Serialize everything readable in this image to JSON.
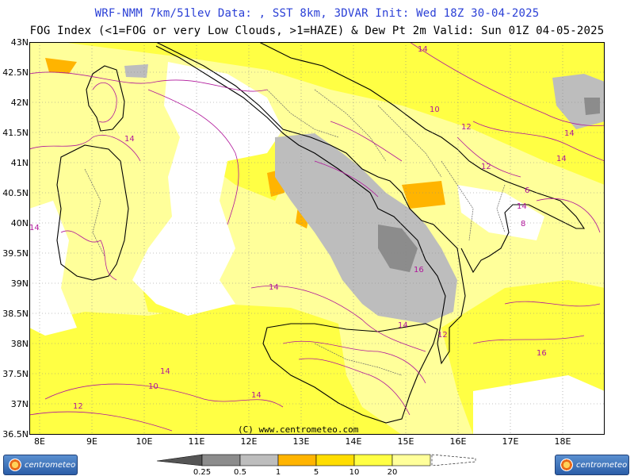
{
  "header": {
    "line1": "WRF-NMM 7km/51lev  Data: , SST 8km, 3DVAR  Init: Wed 18Z 30-04-2025",
    "line2": "FOG Index (<1=FOG or very Low Clouds, >1=HAZE) & Dew Pt 2m  Valid: Sun 01Z 04-05-2025"
  },
  "axes": {
    "lat_labels": [
      "43N",
      "42.5N",
      "42N",
      "41.5N",
      "41N",
      "40.5N",
      "40N",
      "39.5N",
      "39N",
      "38.5N",
      "38N",
      "37.5N",
      "37N",
      "36.5N"
    ],
    "lon_labels": [
      "8E",
      "9E",
      "10E",
      "11E",
      "12E",
      "13E",
      "14E",
      "15E",
      "16E",
      "17E",
      "18E"
    ]
  },
  "copyright": "(C) www.centrometeo.com",
  "logos": {
    "left": "centrometeo",
    "right": "centrometeo"
  },
  "legend": {
    "tick_labels": [
      "0.25",
      "0.5",
      "1",
      "5",
      "10",
      "20"
    ],
    "colors": [
      "#8c8c8c",
      "#bdbdbd",
      "#ffb400",
      "#ffdd00",
      "#ffff44",
      "#ffff9a"
    ]
  },
  "contour_labels": [
    {
      "text": "14"
    },
    {
      "text": "14"
    },
    {
      "text": "12"
    },
    {
      "text": "14"
    },
    {
      "text": "10"
    },
    {
      "text": "14"
    },
    {
      "text": "12"
    },
    {
      "text": "14"
    },
    {
      "text": "6"
    },
    {
      "text": "8"
    },
    {
      "text": "16"
    },
    {
      "text": "14"
    },
    {
      "text": "14"
    },
    {
      "text": "10"
    },
    {
      "text": "14"
    },
    {
      "text": "16"
    },
    {
      "text": "14"
    },
    {
      "text": "12"
    },
    {
      "text": "14"
    },
    {
      "text": "12"
    }
  ],
  "colors": {
    "title_accent": "#2a3fd6",
    "contour": "#b0169a",
    "coast": "#000000",
    "border": "#555555"
  }
}
